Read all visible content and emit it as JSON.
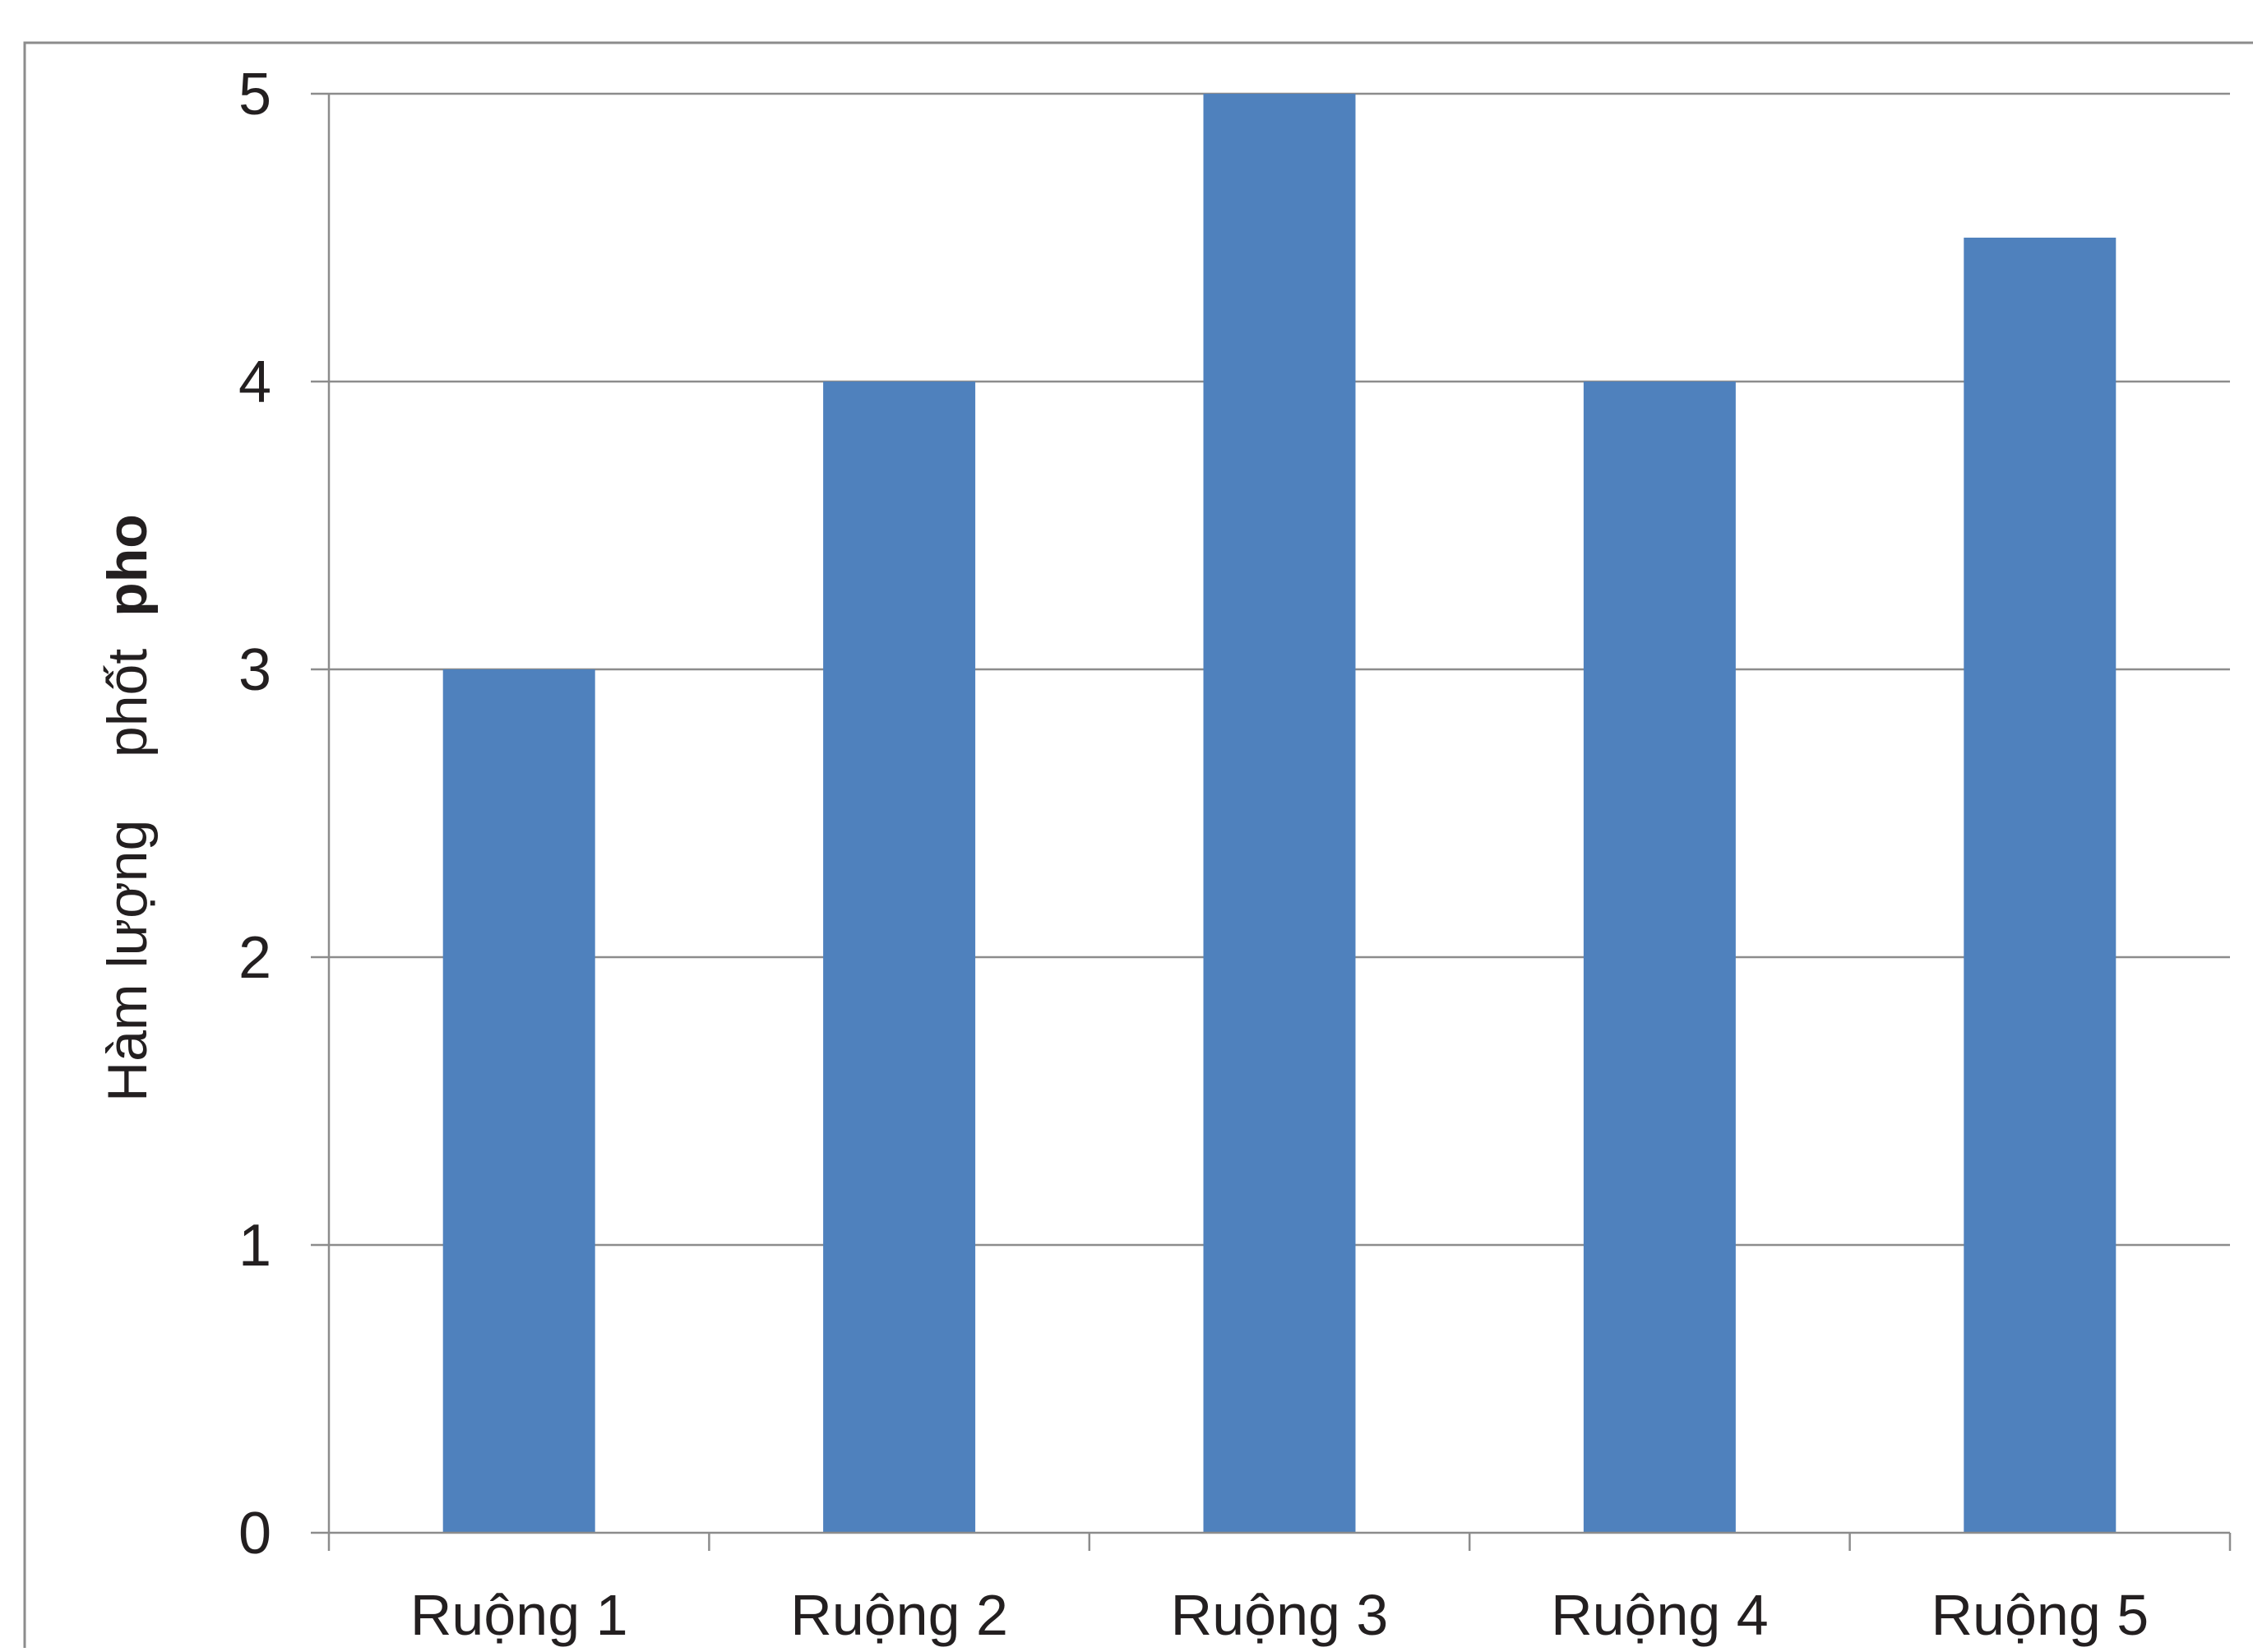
{
  "chart_data": {
    "type": "bar",
    "categories": [
      "Ruộng 1",
      "Ruộng 2",
      "Ruộng 3",
      "Ruộng 4",
      "Ruộng 5"
    ],
    "values": [
      3,
      4,
      5,
      4,
      4.5
    ],
    "title": "",
    "xlabel": "",
    "ylabel": "Hàm lượng phốt pho",
    "ylabel_regular": "Hàm lượng    phốt",
    "ylabel_bold": "pho",
    "ylim": [
      0,
      5
    ],
    "yticks": [
      0,
      1,
      2,
      3,
      4,
      5
    ],
    "ytick_labels": [
      "0",
      "1",
      "2",
      "3",
      "4",
      "5"
    ],
    "grid": true,
    "legend": "none",
    "colors": {
      "bar": "#4f81bd",
      "grid": "#8c8c8c",
      "axis": "#8c8c8c",
      "frame": "#8c8c8c",
      "text": "#231f20"
    }
  }
}
